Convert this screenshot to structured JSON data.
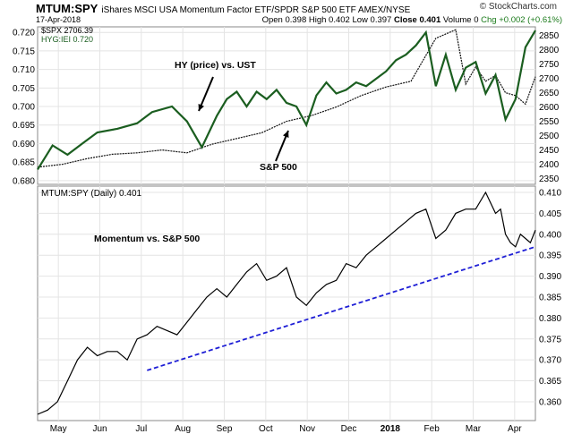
{
  "header": {
    "symbol": "MTUM:SPY",
    "description": "iShares MSCI USA Momentum Factor ETF/SPDR S&P 500 ETF  AMEX/NYSE",
    "date": "17-Apr-2018",
    "quote_open": "Open 0.398",
    "quote_high": "High 0.402",
    "quote_low": "Low 0.397",
    "quote_close": "Close 0.401",
    "quote_volume": "Volume 0",
    "quote_chg": "Chg +0.002 (+0.61%)",
    "brand": "© StockCharts.com"
  },
  "colors": {
    "hy": "#1b5e20",
    "spx": "#111111",
    "ratio": "#000000",
    "trend": "#1f1fd6"
  },
  "chart_data": [
    {
      "type": "line",
      "panel": "top",
      "legend": [
        "$SPX 2706.39",
        "HYG:IEI 0.720"
      ],
      "annotations": [
        "HY (price) vs. UST",
        "S&P 500"
      ],
      "y_left_ticks": [
        "0.720",
        "0.715",
        "0.710",
        "0.705",
        "0.700",
        "0.695",
        "0.690",
        "0.685",
        "0.680"
      ],
      "y_right_ticks": [
        "2850",
        "2800",
        "2750",
        "2700",
        "2650",
        "2600",
        "2550",
        "2500",
        "2450",
        "2400",
        "2350"
      ],
      "y_left_range": [
        0.679,
        0.7215
      ],
      "y_right_range": [
        2330,
        2880
      ],
      "series": [
        {
          "name": "HYG:IEI 0.720",
          "axis": "left",
          "x": [
            0,
            0.03,
            0.06,
            0.09,
            0.12,
            0.16,
            0.2,
            0.23,
            0.27,
            0.3,
            0.33,
            0.36,
            0.38,
            0.4,
            0.42,
            0.44,
            0.46,
            0.48,
            0.5,
            0.52,
            0.54,
            0.56,
            0.58,
            0.6,
            0.62,
            0.64,
            0.66,
            0.68,
            0.7,
            0.72,
            0.74,
            0.76,
            0.78,
            0.8,
            0.82,
            0.84,
            0.86,
            0.88,
            0.9,
            0.92,
            0.94,
            0.96,
            0.98,
            1.0
          ],
          "values": [
            0.683,
            0.6895,
            0.687,
            0.69,
            0.693,
            0.694,
            0.6955,
            0.6985,
            0.7,
            0.696,
            0.689,
            0.6975,
            0.702,
            0.704,
            0.7,
            0.704,
            0.702,
            0.7045,
            0.701,
            0.7,
            0.695,
            0.703,
            0.7065,
            0.7035,
            0.7045,
            0.7065,
            0.7055,
            0.7075,
            0.7095,
            0.7125,
            0.714,
            0.7165,
            0.72,
            0.7055,
            0.714,
            0.7045,
            0.7105,
            0.712,
            0.7035,
            0.7085,
            0.6965,
            0.702,
            0.716,
            0.7205
          ]
        },
        {
          "name": "$SPX 2706.39",
          "axis": "right",
          "x": [
            0,
            0.05,
            0.1,
            0.15,
            0.2,
            0.25,
            0.3,
            0.35,
            0.4,
            0.45,
            0.5,
            0.55,
            0.6,
            0.65,
            0.7,
            0.75,
            0.8,
            0.84,
            0.86,
            0.88,
            0.9,
            0.92,
            0.94,
            0.96,
            0.98,
            1.0
          ],
          "values": [
            2390,
            2400,
            2420,
            2435,
            2440,
            2450,
            2440,
            2470,
            2490,
            2510,
            2550,
            2570,
            2600,
            2640,
            2670,
            2690,
            2840,
            2870,
            2680,
            2740,
            2690,
            2710,
            2650,
            2640,
            2610,
            2706
          ]
        }
      ]
    },
    {
      "type": "line",
      "panel": "bottom",
      "title": "MTUM:SPY (Daily) 0.401",
      "annotations": [
        "Momentum vs. S&P 500"
      ],
      "y_ticks": [
        "0.410",
        "0.405",
        "0.400",
        "0.395",
        "0.390",
        "0.385",
        "0.380",
        "0.375",
        "0.370",
        "0.365",
        "0.360"
      ],
      "y_range": [
        0.3555,
        0.4115
      ],
      "x_ticks": [
        "May",
        "Jun",
        "Jul",
        "Aug",
        "Sep",
        "Oct",
        "Nov",
        "Dec",
        "2018",
        "Feb",
        "Mar",
        "Apr"
      ],
      "series": [
        {
          "name": "MTUM:SPY",
          "axis": "right",
          "x": [
            0,
            0.02,
            0.04,
            0.06,
            0.08,
            0.1,
            0.12,
            0.14,
            0.16,
            0.18,
            0.2,
            0.22,
            0.24,
            0.26,
            0.28,
            0.3,
            0.32,
            0.34,
            0.36,
            0.38,
            0.4,
            0.42,
            0.44,
            0.46,
            0.48,
            0.5,
            0.52,
            0.54,
            0.56,
            0.58,
            0.6,
            0.62,
            0.64,
            0.66,
            0.68,
            0.7,
            0.72,
            0.74,
            0.76,
            0.78,
            0.8,
            0.82,
            0.84,
            0.86,
            0.88,
            0.9,
            0.92,
            0.93,
            0.94,
            0.95,
            0.96,
            0.97,
            0.98,
            0.99,
            1.0
          ],
          "values": [
            0.357,
            0.358,
            0.36,
            0.365,
            0.37,
            0.373,
            0.371,
            0.372,
            0.372,
            0.37,
            0.375,
            0.376,
            0.378,
            0.377,
            0.376,
            0.379,
            0.382,
            0.385,
            0.387,
            0.385,
            0.388,
            0.391,
            0.393,
            0.389,
            0.39,
            0.392,
            0.385,
            0.383,
            0.386,
            0.388,
            0.389,
            0.393,
            0.392,
            0.395,
            0.397,
            0.399,
            0.401,
            0.403,
            0.405,
            0.406,
            0.399,
            0.401,
            0.405,
            0.406,
            0.406,
            0.41,
            0.405,
            0.406,
            0.4,
            0.398,
            0.397,
            0.4,
            0.399,
            0.398,
            0.401
          ]
        },
        {
          "name": "trendline",
          "axis": "right",
          "style": "dashed",
          "x": [
            0.22,
            1.0
          ],
          "values": [
            0.3675,
            0.397
          ]
        }
      ]
    }
  ]
}
